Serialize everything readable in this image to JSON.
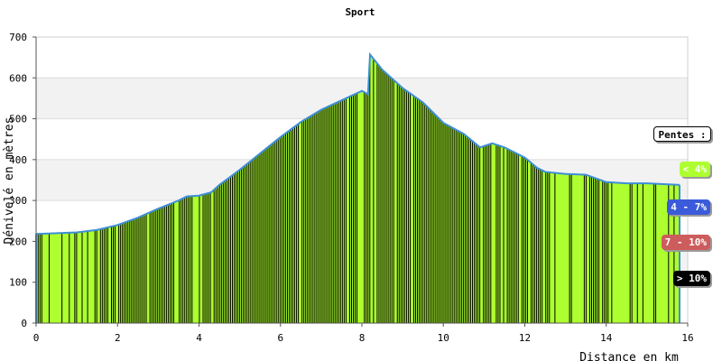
{
  "chart_data": {
    "type": "area",
    "title": "Sport",
    "xlabel": "Distance en km",
    "ylabel": "Dénivelé en mètres",
    "xlim": [
      0,
      16
    ],
    "ylim": [
      0,
      700
    ],
    "xticks": [
      0,
      2,
      4,
      6,
      8,
      10,
      12,
      14,
      16
    ],
    "yticks": [
      0,
      100,
      200,
      300,
      400,
      500,
      600,
      700
    ],
    "grid": true,
    "legend_position": "right",
    "series": [
      {
        "x": [
          0,
          0.5,
          1,
          1.5,
          2,
          2.5,
          3,
          3.5,
          3.7,
          4,
          4.3,
          4.5,
          5,
          5.5,
          6,
          6.5,
          7,
          7.5,
          8,
          8.15,
          8.2,
          8.5,
          9,
          9.5,
          10,
          10.5,
          10.9,
          11.2,
          11.5,
          12,
          12.3,
          12.5,
          13,
          13.5,
          14,
          14.5,
          15,
          15.8
        ],
        "y": [
          218,
          220,
          222,
          228,
          240,
          258,
          280,
          300,
          310,
          312,
          320,
          338,
          375,
          415,
          455,
          492,
          522,
          545,
          568,
          560,
          657,
          620,
          575,
          540,
          490,
          463,
          430,
          440,
          430,
          405,
          380,
          370,
          365,
          363,
          345,
          342,
          342,
          338
        ]
      }
    ]
  },
  "legend": {
    "title": "Pentes :",
    "items": [
      {
        "label": "< 4%",
        "color": "#adff2f",
        "text_color": "#ffffff"
      },
      {
        "label": "4 - 7%",
        "color": "#3b5bdb",
        "text_color": "#ffffff"
      },
      {
        "label": "7 - 10%",
        "color": "#cd5c5c",
        "text_color": "#ffffff"
      },
      {
        "label": "> 10%",
        "color": "#000000",
        "text_color": "#ffffff"
      }
    ]
  },
  "colors": {
    "fill": "#adff2f",
    "stroke": "#3d8fd6",
    "steep": "#000000",
    "band": "#f2f2f2"
  }
}
